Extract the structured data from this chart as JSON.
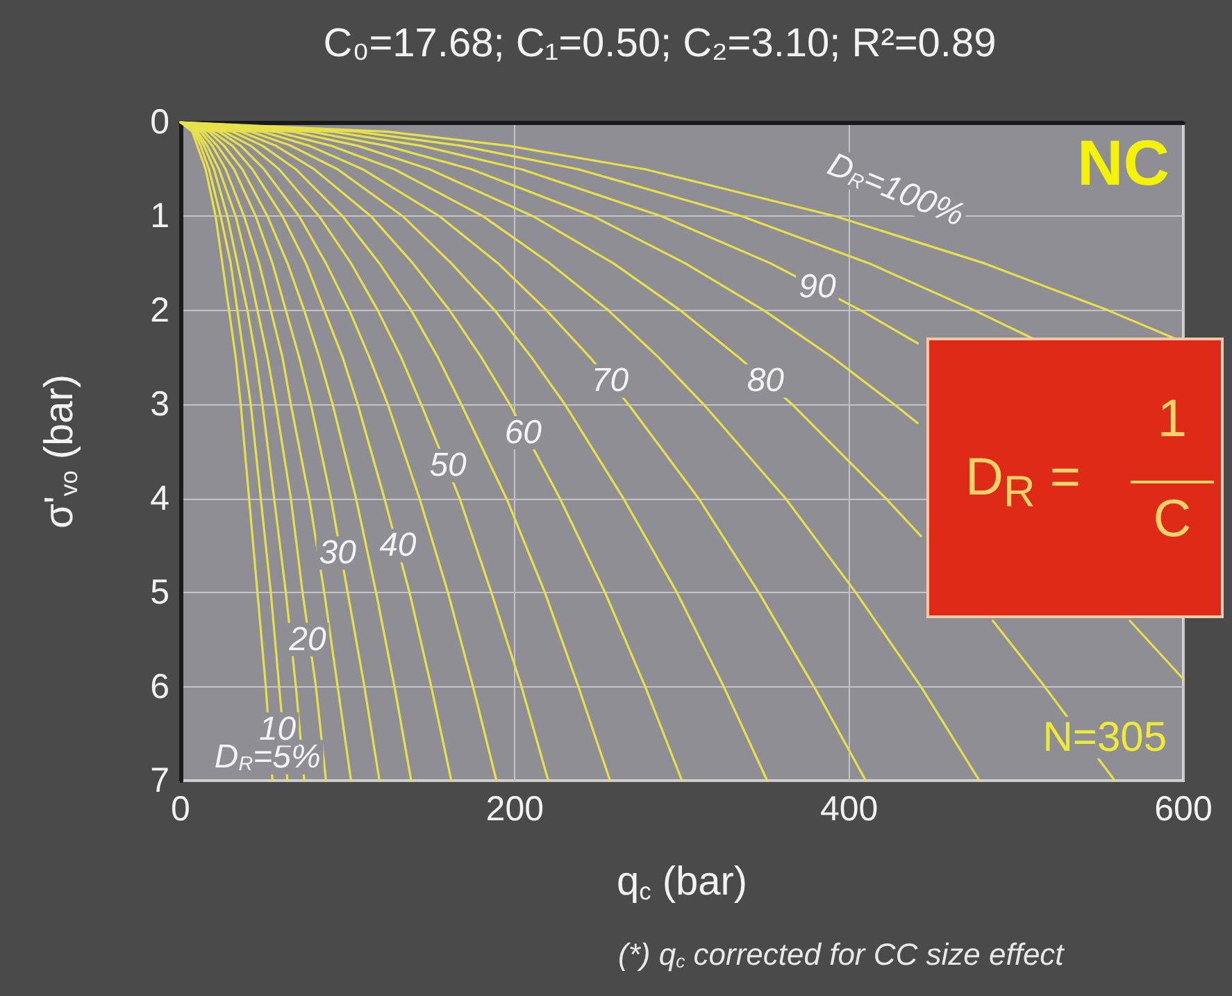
{
  "chart_data": {
    "type": "line",
    "title": "C₀=17.68; C₁=0.50; C₂=3.10; R²=0.89",
    "xlabel": "q$_{c}$ (bar)",
    "ylabel": "σ'$_{vo}$ (bar)",
    "xlim": [
      0,
      600
    ],
    "xticks": [
      0,
      200,
      400,
      600
    ],
    "ylim": [
      7,
      0
    ],
    "yticks": [
      0,
      1,
      2,
      3,
      4,
      5,
      6,
      7
    ],
    "grid": true,
    "legend": false,
    "marker": "none",
    "line_style": "solid",
    "annotations": [
      "NC",
      "N=305",
      "D$_{R}$ =",
      "1",
      "C",
      "(*) q$_{c}$ corrected for CC size effect"
    ],
    "series": [
      {
        "name": "D$_{R}$=5%",
        "color": "#e6e04c",
        "x": [
          0,
          7,
          10,
          15,
          21,
          25,
          29,
          33,
          36,
          41,
          46,
          51,
          55
        ],
        "values": [
          0,
          0.1,
          0.25,
          0.5,
          1,
          1.5,
          2,
          2.5,
          3,
          4,
          5,
          6,
          7
        ]
      },
      {
        "name": "10",
        "color": "#e6e04c",
        "x": [
          0,
          8,
          12,
          17,
          24,
          30,
          34,
          38,
          42,
          48,
          54,
          59,
          64
        ],
        "values": [
          0,
          0.1,
          0.25,
          0.5,
          1,
          1.5,
          2,
          2.5,
          3,
          4,
          5,
          6,
          7
        ]
      },
      {
        "color": "#e6e04c",
        "x": [
          0,
          9,
          14,
          20,
          28,
          34,
          40,
          45,
          49,
          56,
          63,
          69,
          74
        ],
        "values": [
          0,
          0.1,
          0.25,
          0.5,
          1,
          1.5,
          2,
          2.5,
          3,
          4,
          5,
          6,
          7
        ]
      },
      {
        "name": "20",
        "color": "#e6e04c",
        "x": [
          0,
          10,
          16,
          23,
          33,
          40,
          46,
          52,
          57,
          66,
          73,
          81,
          87
        ],
        "values": [
          0,
          0.1,
          0.25,
          0.5,
          1,
          1.5,
          2,
          2.5,
          3,
          4,
          5,
          6,
          7
        ]
      },
      {
        "color": "#e6e04c",
        "x": [
          0,
          12,
          19,
          27,
          38,
          47,
          54,
          61,
          66,
          77,
          86,
          94,
          102
        ],
        "values": [
          0,
          0.1,
          0.25,
          0.5,
          1,
          1.5,
          2,
          2.5,
          3,
          4,
          5,
          6,
          7
        ]
      },
      {
        "name": "30",
        "color": "#e6e04c",
        "x": [
          0,
          14,
          22,
          32,
          45,
          55,
          63,
          71,
          78,
          90,
          100,
          110,
          119
        ],
        "values": [
          0,
          0.1,
          0.25,
          0.5,
          1,
          1.5,
          2,
          2.5,
          3,
          4,
          5,
          6,
          7
        ]
      },
      {
        "color": "#e6e04c",
        "x": [
          0,
          17,
          26,
          37,
          52,
          64,
          74,
          83,
          91,
          105,
          117,
          128,
          138
        ],
        "values": [
          0,
          0.1,
          0.25,
          0.5,
          1,
          1.5,
          2,
          2.5,
          3,
          4,
          5,
          6,
          7
        ]
      },
      {
        "name": "40",
        "color": "#e6e04c",
        "x": [
          0,
          19,
          31,
          43,
          61,
          75,
          86,
          97,
          106,
          122,
          137,
          150,
          162
        ],
        "values": [
          0,
          0.1,
          0.25,
          0.5,
          1,
          1.5,
          2,
          2.5,
          3,
          4,
          5,
          6,
          7
        ]
      },
      {
        "color": "#e6e04c",
        "x": [
          0,
          23,
          36,
          50,
          71,
          87,
          101,
          113,
          124,
          143,
          160,
          175,
          189
        ],
        "values": [
          0,
          0.1,
          0.25,
          0.5,
          1,
          1.5,
          2,
          2.5,
          3,
          4,
          5,
          6,
          7
        ]
      },
      {
        "name": "50",
        "color": "#e6e04c",
        "x": [
          0,
          26,
          42,
          59,
          83,
          102,
          118,
          132,
          144,
          167,
          186,
          204,
          220
        ],
        "values": [
          0,
          0.1,
          0.25,
          0.5,
          1,
          1.5,
          2,
          2.5,
          3,
          4,
          5,
          6,
          7
        ]
      },
      {
        "color": "#e6e04c",
        "x": [
          0,
          31,
          49,
          69,
          97,
          119,
          138,
          154,
          168,
          195,
          218,
          238,
          257
        ],
        "values": [
          0,
          0.1,
          0.25,
          0.5,
          1,
          1.5,
          2,
          2.5,
          3,
          4,
          5,
          6,
          7
        ]
      },
      {
        "name": "60",
        "color": "#e6e04c",
        "x": [
          0,
          36,
          57,
          80,
          114,
          139,
          161,
          180,
          197,
          227,
          254,
          278,
          300
        ],
        "values": [
          0,
          0.1,
          0.25,
          0.5,
          1,
          1.5,
          2,
          2.5,
          3,
          4,
          5,
          6,
          7
        ]
      },
      {
        "color": "#e6e04c",
        "x": [
          0,
          42,
          66,
          94,
          133,
          162,
          188,
          210,
          230,
          265,
          297,
          325,
          351
        ],
        "values": [
          0,
          0.1,
          0.25,
          0.5,
          1,
          1.5,
          2,
          2.5,
          3,
          4,
          5,
          6,
          7
        ]
      },
      {
        "name": "70",
        "color": "#e6e04c",
        "x": [
          0,
          49,
          77,
          109,
          155,
          190,
          219,
          245,
          268,
          310,
          346,
          379,
          410
        ],
        "values": [
          0,
          0.1,
          0.25,
          0.5,
          1,
          1.5,
          2,
          2.5,
          3,
          4,
          5,
          6,
          7
        ]
      },
      {
        "color": "#e6e04c",
        "x": [
          0,
          57,
          90,
          128,
          181,
          221,
          256,
          286,
          313,
          362,
          404,
          443,
          478
        ],
        "values": [
          0,
          0.1,
          0.25,
          0.5,
          1,
          1.5,
          2,
          2.5,
          3,
          4,
          5,
          6,
          7
        ]
      },
      {
        "name": "80",
        "color": "#e6e04c",
        "x": [
          0,
          67,
          106,
          149,
          211,
          259,
          299,
          334,
          366,
          422,
          443,
          null,
          486,
          517,
          559
        ],
        "values": [
          0,
          0.1,
          0.25,
          0.5,
          1,
          1.5,
          2,
          2.5,
          3,
          4,
          4.4,
          null,
          5.3,
          6,
          7
        ]
      },
      {
        "color": "#e6e04c",
        "x": [
          0,
          78,
          123,
          174,
          247,
          302,
          349,
          390,
          427,
          441,
          null,
          568,
          600
        ],
        "values": [
          0,
          0.1,
          0.25,
          0.5,
          1,
          1.5,
          2,
          2.5,
          3,
          3.2,
          null,
          5.3,
          5.92
        ]
      },
      {
        "name": "90",
        "color": "#e6e04c",
        "x": [
          0,
          91,
          144,
          204,
          288,
          353,
          407,
          441
        ],
        "values": [
          0,
          0.1,
          0.25,
          0.5,
          1,
          1.5,
          2,
          2.35
        ]
      },
      {
        "color": "#e6e04c",
        "x": [
          0,
          106,
          168,
          238,
          336,
          412,
          475,
          510
        ],
        "values": [
          0,
          0.1,
          0.25,
          0.5,
          1,
          1.5,
          2,
          2.3
        ]
      },
      {
        "name": "D$_{R}$=100%",
        "color": "#e6e04c",
        "x": [
          0,
          124,
          196,
          278,
          392,
          481,
          555,
          595
        ],
        "values": [
          0,
          0.1,
          0.25,
          0.5,
          1,
          1.5,
          2,
          2.3
        ]
      }
    ]
  }
}
